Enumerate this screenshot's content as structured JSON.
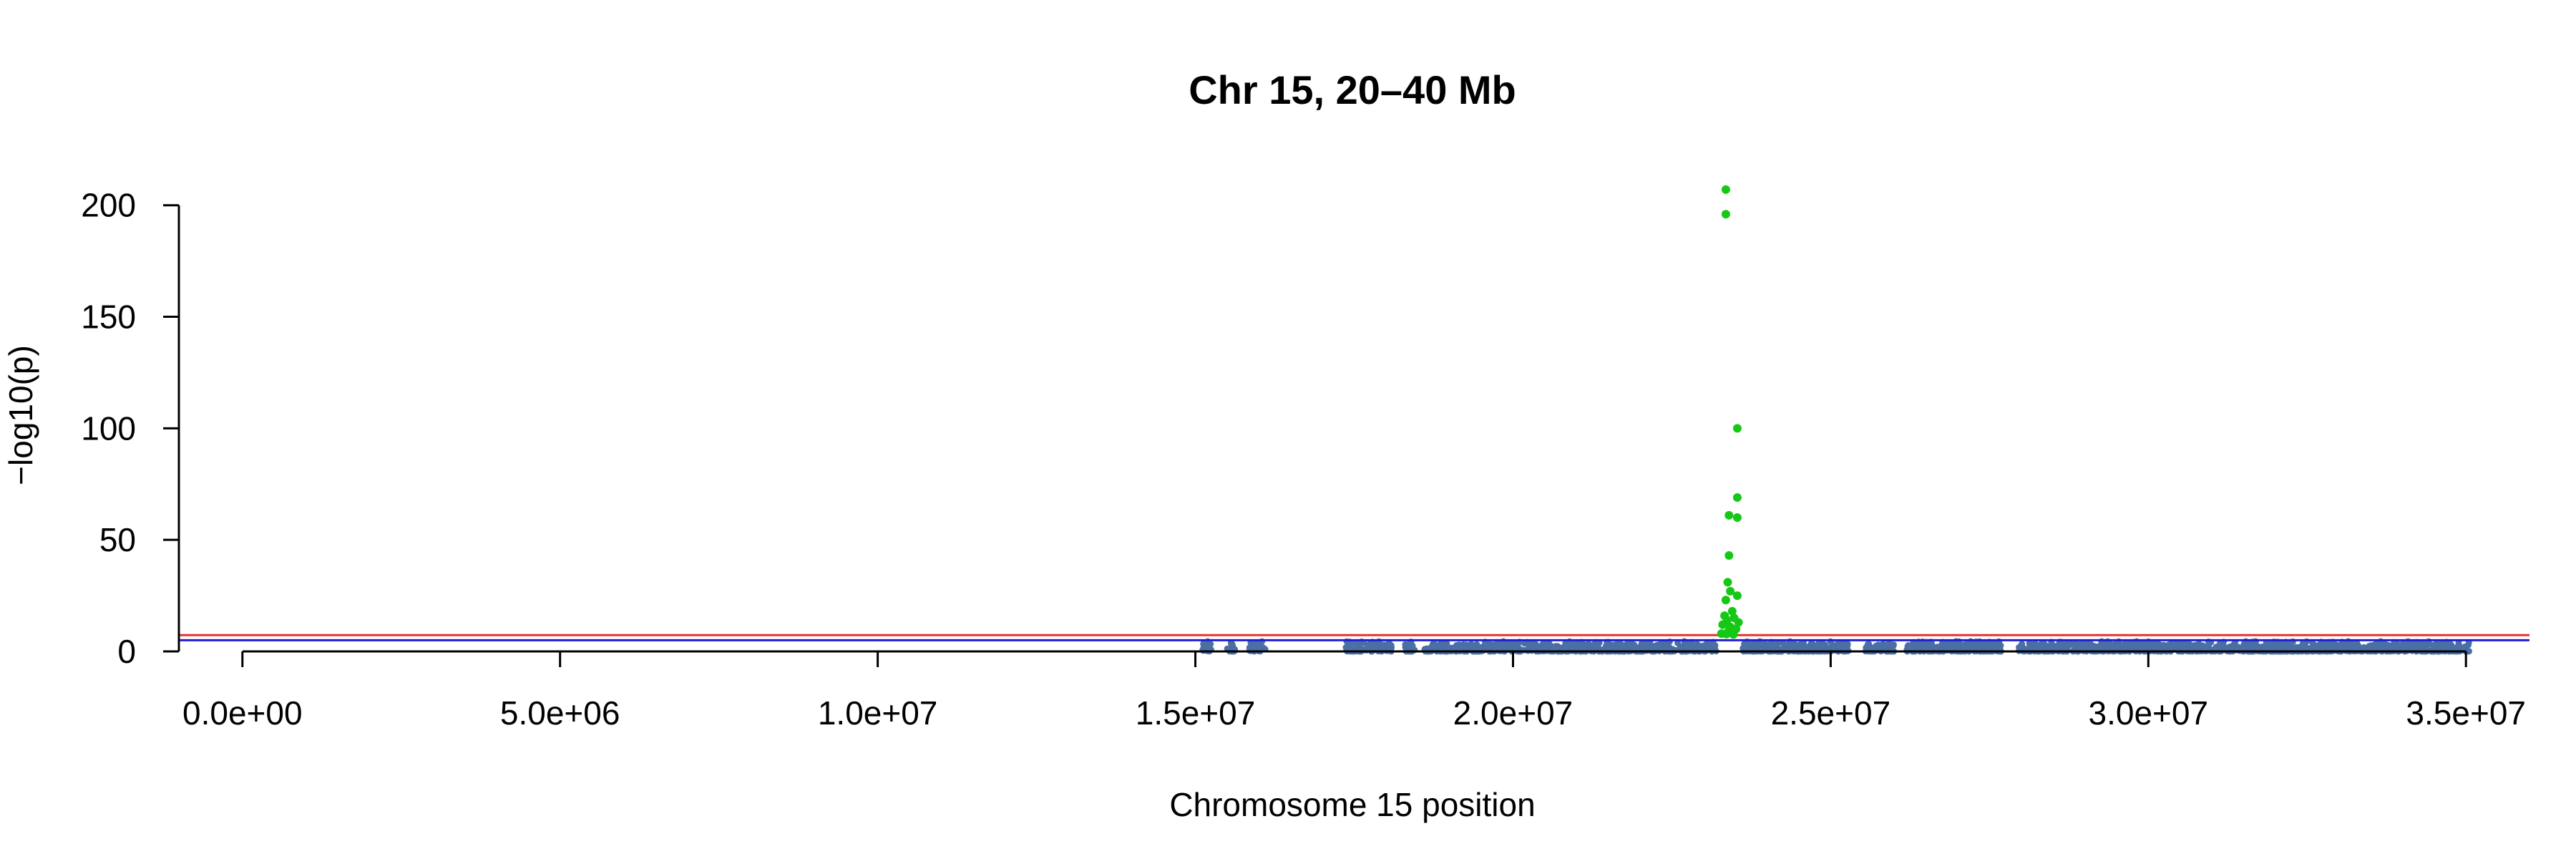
{
  "chart_data": {
    "type": "scatter",
    "title": "Chr 15, 20–40 Mb",
    "xlabel": "Chromosome 15 position",
    "ylabel": "−log10(p)",
    "xlim": [
      -1000000,
      36000000
    ],
    "ylim": [
      0,
      215
    ],
    "x_ticks": [
      0,
      5000000,
      10000000,
      15000000,
      20000000,
      25000000,
      30000000,
      35000000
    ],
    "x_tick_labels": [
      "0.0e+00",
      "5.0e+06",
      "1.0e+07",
      "1.5e+07",
      "2.0e+07",
      "2.5e+07",
      "3.0e+07",
      "3.5e+07"
    ],
    "y_ticks": [
      0,
      50,
      100,
      150,
      200
    ],
    "y_tick_labels": [
      "0",
      "50",
      "100",
      "150",
      "200"
    ],
    "grid": false,
    "legend": "none",
    "threshold_lines": [
      {
        "y": 7.3,
        "color": "#e8312f"
      },
      {
        "y": 5,
        "color": "#1f1fd1"
      }
    ],
    "colors": {
      "background": "#4a6fa5",
      "significant": "#16c816"
    },
    "background_points": {
      "regions": [
        [
          15100000,
          15250000
        ],
        [
          15500000,
          15650000
        ],
        [
          15850000,
          16100000
        ],
        [
          17350000,
          18100000
        ],
        [
          18300000,
          18450000
        ],
        [
          18600000,
          23200000
        ],
        [
          23600000,
          25300000
        ],
        [
          25550000,
          26000000
        ],
        [
          26200000,
          27700000
        ],
        [
          27950000,
          35050000
        ]
      ],
      "max_y": 4.5
    },
    "significant_points": [
      {
        "x": 23350000,
        "y": 207
      },
      {
        "x": 23350000,
        "y": 196
      },
      {
        "x": 23530000,
        "y": 100
      },
      {
        "x": 23530000,
        "y": 69
      },
      {
        "x": 23400000,
        "y": 61
      },
      {
        "x": 23530000,
        "y": 60
      },
      {
        "x": 23400000,
        "y": 43
      },
      {
        "x": 23380000,
        "y": 31
      },
      {
        "x": 23420000,
        "y": 27
      },
      {
        "x": 23530000,
        "y": 25
      },
      {
        "x": 23350000,
        "y": 23
      },
      {
        "x": 23450000,
        "y": 18
      },
      {
        "x": 23330000,
        "y": 16
      },
      {
        "x": 23480000,
        "y": 15
      },
      {
        "x": 23370000,
        "y": 14
      },
      {
        "x": 23550000,
        "y": 13
      },
      {
        "x": 23300000,
        "y": 12
      },
      {
        "x": 23420000,
        "y": 11
      },
      {
        "x": 23510000,
        "y": 10
      },
      {
        "x": 23390000,
        "y": 9
      },
      {
        "x": 23440000,
        "y": 8.5
      },
      {
        "x": 23280000,
        "y": 8
      },
      {
        "x": 23360000,
        "y": 7.8
      },
      {
        "x": 23470000,
        "y": 7.6
      }
    ]
  }
}
